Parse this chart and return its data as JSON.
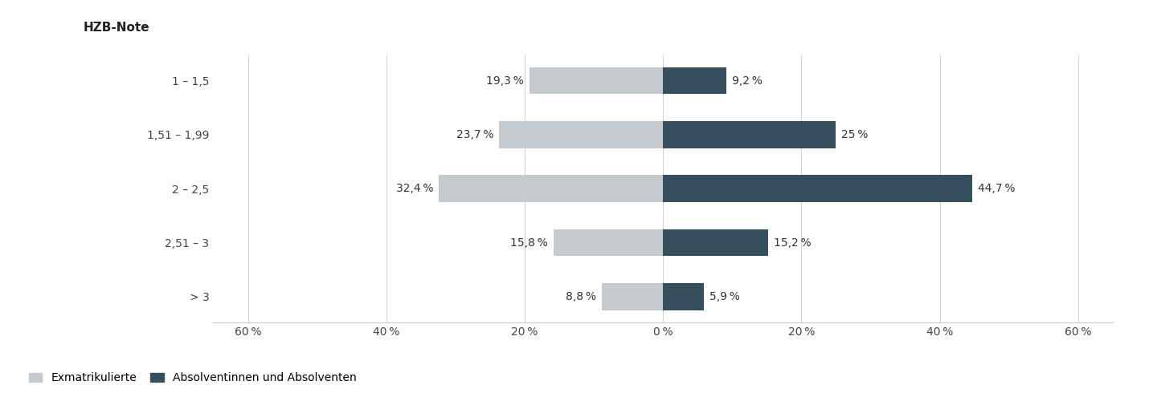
{
  "categories": [
    "1 – 1,5",
    "1,51 – 1,99",
    "2 – 2,5",
    "2,51 – 3",
    "> 3"
  ],
  "exmatrikulierte": [
    19.3,
    23.7,
    32.4,
    15.8,
    8.8
  ],
  "absolventen": [
    9.2,
    25.0,
    44.7,
    15.2,
    5.9
  ],
  "absolventen_labels": [
    "9,2 %",
    "25 %",
    "44,7 %",
    "15,2 %",
    "5,9 %"
  ],
  "exmat_labels": [
    "19,3 %",
    "23,7 %",
    "32,4 %",
    "15,8 %",
    "8,8 %"
  ],
  "color_exmat": "#c5cacf",
  "color_absol": "#354f5e",
  "xlabel_ticks": [
    -60,
    -40,
    -20,
    0,
    20,
    40,
    60
  ],
  "xlabel_labels": [
    "60 %",
    "40 %",
    "20 %",
    "0 %",
    "20 %",
    "40 %",
    "60 %"
  ],
  "ylabel_title": "HZB-Note",
  "legend_exmat": "Exmatrikulierte",
  "legend_absol": "Absolventinnen und Absolventen",
  "xlim": [
    -65,
    65
  ],
  "bar_height": 0.5,
  "label_fontsize": 10,
  "tick_fontsize": 10,
  "title_fontsize": 11,
  "background_color": "#ffffff"
}
